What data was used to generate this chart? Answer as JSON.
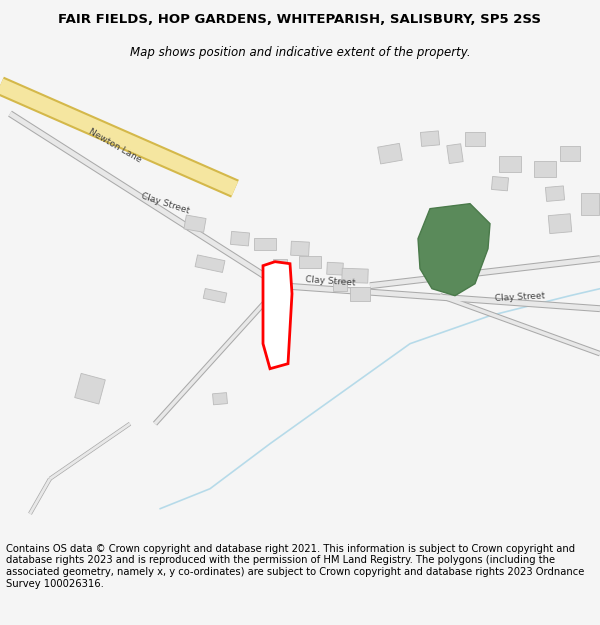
{
  "title": "FAIR FIELDS, HOP GARDENS, WHITEPARISH, SALISBURY, SP5 2SS",
  "subtitle": "Map shows position and indicative extent of the property.",
  "footer": "Contains OS data © Crown copyright and database right 2021. This information is subject to Crown copyright and database rights 2023 and is reproduced with the permission of HM Land Registry. The polygons (including the associated geometry, namely x, y co-ordinates) are subject to Crown copyright and database rights 2023 Ordnance Survey 100026316.",
  "bg_color": "#f5f5f5",
  "map_bg": "#ffffff",
  "road_color": "#cccccc",
  "road_fill": "#e8e8e8",
  "building_fill": "#d8d8d8",
  "building_edge": "#bbbbbb",
  "green_fill": "#5a8a5a",
  "green_edge": "#4a7a4a",
  "highlight_color": "#ff0000",
  "road_yellow_fill": "#f5e6a0",
  "road_yellow_edge": "#d4b84a",
  "stream_color": "#b0d8e8",
  "label_color": "#444444",
  "title_fontsize": 9.5,
  "subtitle_fontsize": 8.5,
  "footer_fontsize": 7.2
}
